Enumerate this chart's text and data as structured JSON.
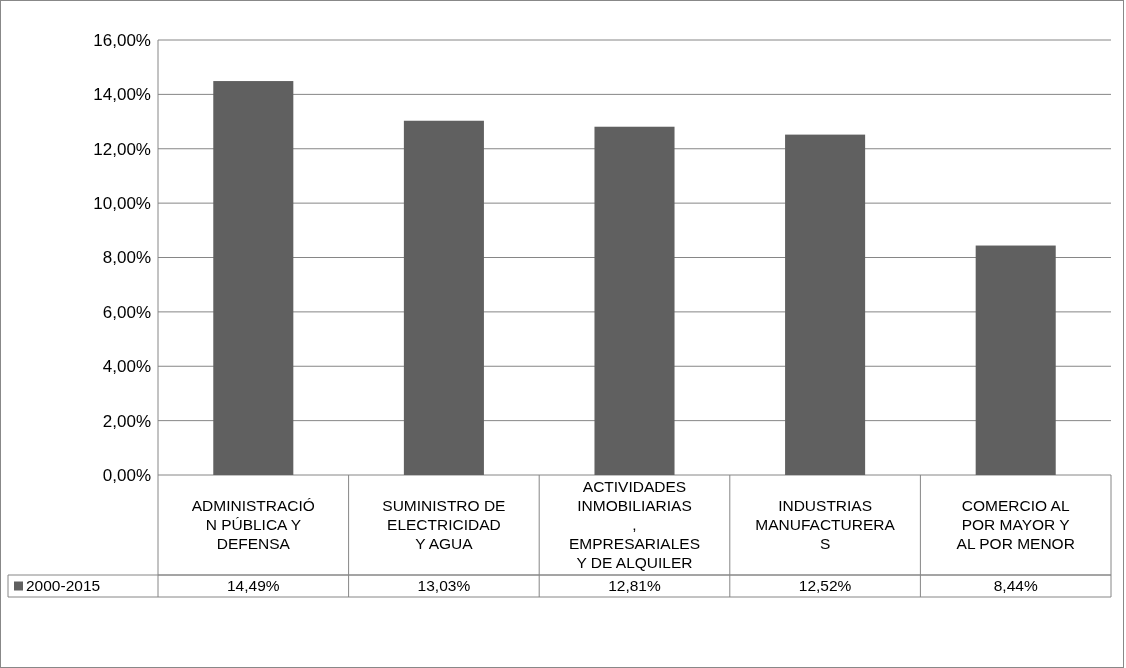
{
  "chart_data": {
    "type": "bar",
    "categories": [
      "ADMINISTRACIÓN PÚBLICA Y DEFENSA",
      "SUMINISTRO DE ELECTRICIDAD Y AGUA",
      "ACTIVIDADES INMOBILIARIAS, EMPRESARIALES Y DE ALQUILER",
      "INDUSTRIAS MANUFACTURERAS",
      "COMERCIO AL POR MAYOR Y AL POR MENOR"
    ],
    "series": [
      {
        "name": "2000-2015",
        "color": "#606060",
        "values": [
          14.49,
          13.03,
          12.81,
          12.52,
          8.44
        ],
        "value_labels": [
          "14,49%",
          "13,03%",
          "12,81%",
          "12,52%",
          "8,44%"
        ]
      }
    ],
    "ylim": [
      0,
      16
    ],
    "yticks": [
      {
        "value": 0,
        "label": "0,00%"
      },
      {
        "value": 2,
        "label": "2,00%"
      },
      {
        "value": 4,
        "label": "4,00%"
      },
      {
        "value": 6,
        "label": "6,00%"
      },
      {
        "value": 8,
        "label": "8,00%"
      },
      {
        "value": 10,
        "label": "10,00%"
      },
      {
        "value": 12,
        "label": "12,00%"
      },
      {
        "value": 14,
        "label": "14,00%"
      },
      {
        "value": 16,
        "label": "16,00%"
      }
    ],
    "grid": "y",
    "legend": "bottom left"
  }
}
